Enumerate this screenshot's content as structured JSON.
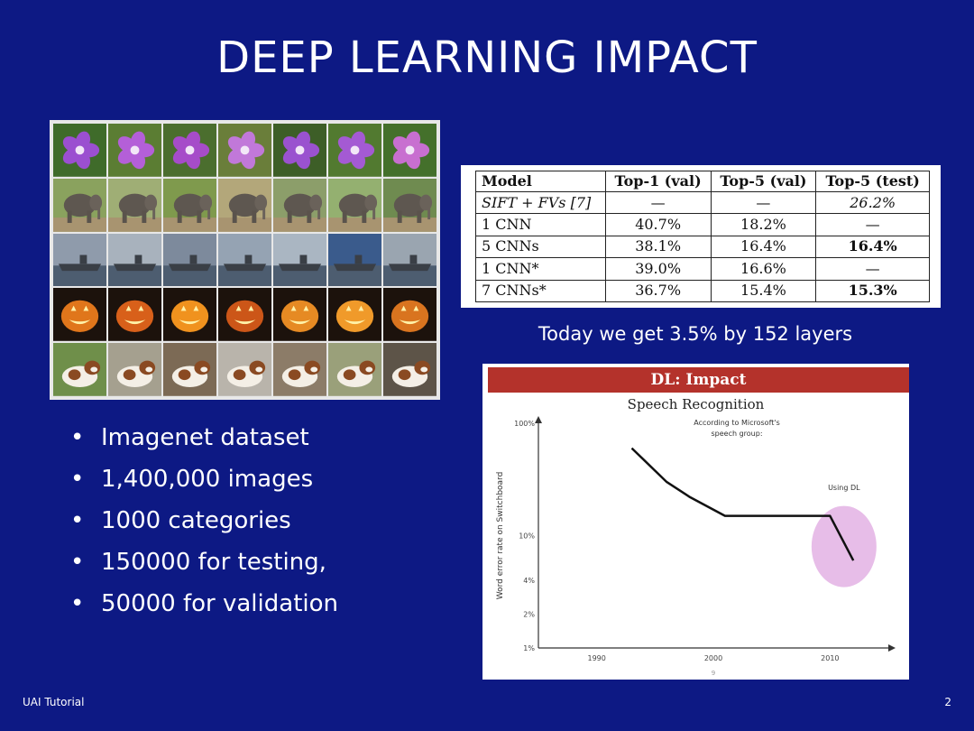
{
  "slide": {
    "title": "DEEP LEARNING IMPACT",
    "footer_left": "UAI Tutorial",
    "page_number": "2"
  },
  "image_grid": {
    "rows": [
      "flower",
      "elephant",
      "ship",
      "jack-o-lantern",
      "dog"
    ],
    "columns": 7
  },
  "results_table": {
    "headers": [
      "Model",
      "Top-1 (val)",
      "Top-5 (val)",
      "Top-5 (test)"
    ],
    "rows": [
      [
        "SIFT + FVs [7]",
        "—",
        "—",
        "26.2%"
      ],
      [
        "1 CNN",
        "40.7%",
        "18.2%",
        "—"
      ],
      [
        "5 CNNs",
        "38.1%",
        "16.4%",
        "16.4%"
      ],
      [
        "1 CNN*",
        "39.0%",
        "16.6%",
        "—"
      ],
      [
        "7 CNNs*",
        "36.7%",
        "15.4%",
        "15.3%"
      ]
    ]
  },
  "caption": "Today we get 3.5% by 152 layers",
  "bullets": [
    "Imagenet dataset",
    "1,400,000 images",
    "1000 categories",
    "150000 for testing,",
    "50000 for validation"
  ],
  "chart_data": {
    "type": "line",
    "header": "DL: Impact",
    "title": "Speech Recognition",
    "annotation": "According to Microsoft's speech group:",
    "highlight_label": "Using DL",
    "ylabel": "Word error rate on Switchboard",
    "y_scale": "log",
    "y_ticks": [
      "100%",
      "10%",
      "4%",
      "2%",
      "1%"
    ],
    "x_ticks": [
      "1990",
      "2000",
      "2010"
    ],
    "footnote": "9",
    "series": [
      {
        "x": [
          1993,
          1996,
          1998,
          2001,
          2005,
          2009,
          2010,
          2012
        ],
        "y": [
          60,
          30,
          22,
          15,
          15,
          15,
          15,
          6
        ]
      }
    ],
    "colors": {
      "header": "#b4322b",
      "highlight": "#e7bde8",
      "line": "#111111"
    }
  }
}
